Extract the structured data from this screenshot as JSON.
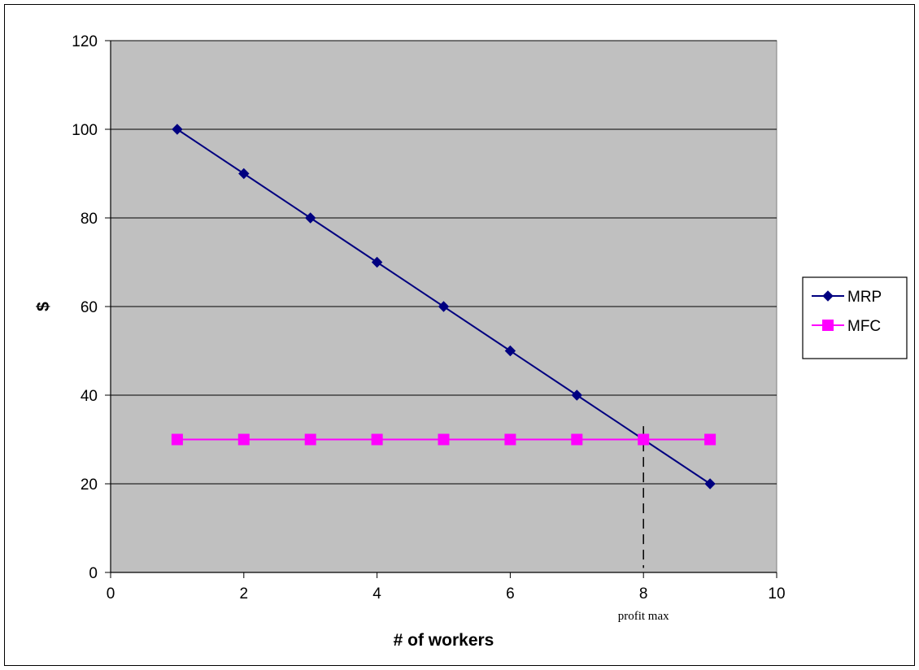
{
  "chart_data": {
    "type": "line",
    "title": "",
    "xlabel": "# of workers",
    "ylabel": "$",
    "xlim": [
      0,
      10
    ],
    "ylim": [
      0,
      120
    ],
    "x_ticks": [
      0,
      2,
      4,
      6,
      8,
      10
    ],
    "y_ticks": [
      0,
      20,
      40,
      60,
      80,
      100,
      120
    ],
    "grid": "horizontal",
    "legend_position": "right",
    "plot_background": "#c0c0c0",
    "series": [
      {
        "name": "MRP",
        "marker": "diamond",
        "color": "#000080",
        "x": [
          1,
          2,
          3,
          4,
          5,
          6,
          7,
          8,
          9
        ],
        "values": [
          100,
          90,
          80,
          70,
          60,
          50,
          40,
          30,
          20
        ]
      },
      {
        "name": "MFC",
        "marker": "square",
        "color": "#ff00ff",
        "x": [
          1,
          2,
          3,
          4,
          5,
          6,
          7,
          8,
          9
        ],
        "values": [
          30,
          30,
          30,
          30,
          30,
          30,
          30,
          30,
          30
        ]
      }
    ],
    "annotations": [
      {
        "text": "profit max",
        "x": 8,
        "line_from_y": 1,
        "line_to_y": 33
      }
    ]
  }
}
